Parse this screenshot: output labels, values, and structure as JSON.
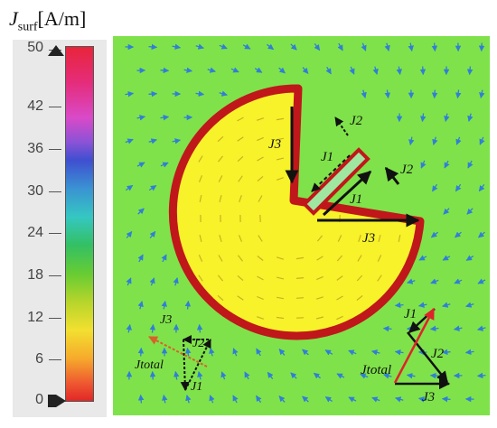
{
  "legend": {
    "quantity_symbol": "J",
    "quantity_subscript": "surf",
    "unit": "[A/m]",
    "tick_labels": [
      "50",
      "42",
      "36",
      "30",
      "24",
      "18",
      "12",
      "6",
      "0"
    ],
    "tick_values": [
      50,
      42,
      36,
      30,
      24,
      18,
      12,
      6,
      0
    ],
    "min": 0,
    "max": 50
  },
  "diagram": {
    "background_color": "#7fe24a",
    "disk_fill_color": "#f7f22a",
    "edge_color": "#c0171b",
    "arrow_color": "#2f7fd6",
    "labels": {
      "j1": "J1",
      "j2": "J2",
      "j3": "J3",
      "jtotal": "Jtotal"
    }
  }
}
